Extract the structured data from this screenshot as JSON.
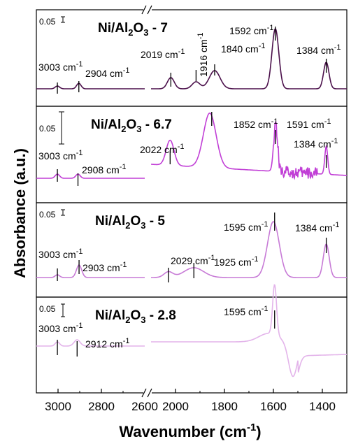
{
  "chart_data": {
    "type": "line",
    "xlabel": "Wavenumber (cm-1)",
    "xlabel_main": "Wavenumber (cm",
    "xlabel_sup": "-1",
    "xlabel_close": ")",
    "ylabel": "Absorbance (a.u.)",
    "xlim": [
      3100,
      1300
    ],
    "axis_break": [
      2600,
      2100
    ],
    "x_ticks": [
      3000,
      2800,
      2600,
      2000,
      1800,
      1600,
      1400
    ],
    "x_tick_labels": [
      "3000",
      "2800",
      "2600",
      "2000",
      "1800",
      "1600",
      "1400"
    ],
    "panels": [
      {
        "title_parts": [
          "Ni/Al",
          "2",
          "O",
          "3",
          " - 7"
        ],
        "scale_bar": "0.05",
        "color": "#4a0f4a",
        "peaks": [
          {
            "x": 3003,
            "label": "3003 cm",
            "sup": "-1"
          },
          {
            "x": 2904,
            "label": "2904 cm",
            "sup": "-1"
          },
          {
            "x": 2019,
            "label": "2019 cm",
            "sup": "-1"
          },
          {
            "x": 1916,
            "label": "1916 cm",
            "sup": "-1"
          },
          {
            "x": 1840,
            "label": "1840 cm",
            "sup": "-1"
          },
          {
            "x": 1592,
            "label": "1592 cm",
            "sup": "-1"
          },
          {
            "x": 1384,
            "label": "1384 cm",
            "sup": "-1"
          }
        ]
      },
      {
        "title_parts": [
          "Ni/Al",
          "2",
          "O",
          "3",
          " - 6.7"
        ],
        "scale_bar": "0.05",
        "color": "#c13fd6",
        "peaks": [
          {
            "x": 3003,
            "label": "3003 cm",
            "sup": "-1"
          },
          {
            "x": 2908,
            "label": "2908 cm",
            "sup": "-1"
          },
          {
            "x": 2022,
            "label": "2022 cm",
            "sup": "-1"
          },
          {
            "x": 1852,
            "label": "1852 cm",
            "sup": "-1"
          },
          {
            "x": 1591,
            "label": "1591 cm",
            "sup": "-1"
          },
          {
            "x": 1384,
            "label": "1384 cm",
            "sup": "-1"
          }
        ]
      },
      {
        "title_parts": [
          "Ni/Al",
          "2",
          "O",
          "3",
          " - 5"
        ],
        "scale_bar": "0.05",
        "color": "#c77ad6",
        "peaks": [
          {
            "x": 3003,
            "label": "3003 cm",
            "sup": "-1"
          },
          {
            "x": 2903,
            "label": "2903 cm",
            "sup": "-1"
          },
          {
            "x": 2029,
            "label": "2029 cm",
            "sup": "-1"
          },
          {
            "x": 1925,
            "label": "1925 cm",
            "sup": "-1"
          },
          {
            "x": 1595,
            "label": "1595 cm",
            "sup": "-1"
          },
          {
            "x": 1384,
            "label": "1384 cm",
            "sup": "-1"
          }
        ]
      },
      {
        "title_parts": [
          "Ni/Al",
          "2",
          "O",
          "3",
          " - 2.8"
        ],
        "scale_bar": "0.05",
        "color": "#e3b4ea",
        "peaks": [
          {
            "x": 3003,
            "label": "3003 cm",
            "sup": "-1"
          },
          {
            "x": 2912,
            "label": "2912 cm",
            "sup": "-1"
          },
          {
            "x": 1595,
            "label": "1595 cm",
            "sup": "-1"
          }
        ]
      }
    ]
  }
}
